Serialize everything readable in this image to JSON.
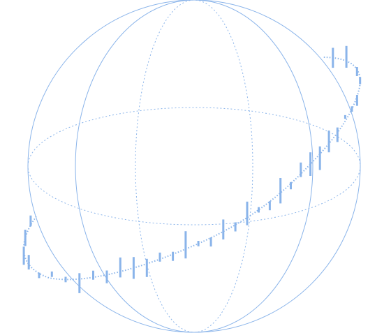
{
  "colors": {
    "wire": "#8ab4ea",
    "bar": "#8ab4ea",
    "background": "#ffffff"
  },
  "chart_data": {
    "type": "spherical-bars",
    "grid": "sphere-wireframe",
    "series": [
      {
        "values": [
          12,
          18,
          20,
          16,
          6,
          6,
          6,
          22,
          10,
          14,
          22,
          24,
          20,
          10,
          10,
          30,
          6,
          10,
          22,
          10,
          26,
          6,
          10,
          28,
          8,
          16,
          26,
          26,
          24,
          16,
          4,
          6,
          12,
          8,
          10,
          24,
          22
        ]
      }
    ]
  }
}
